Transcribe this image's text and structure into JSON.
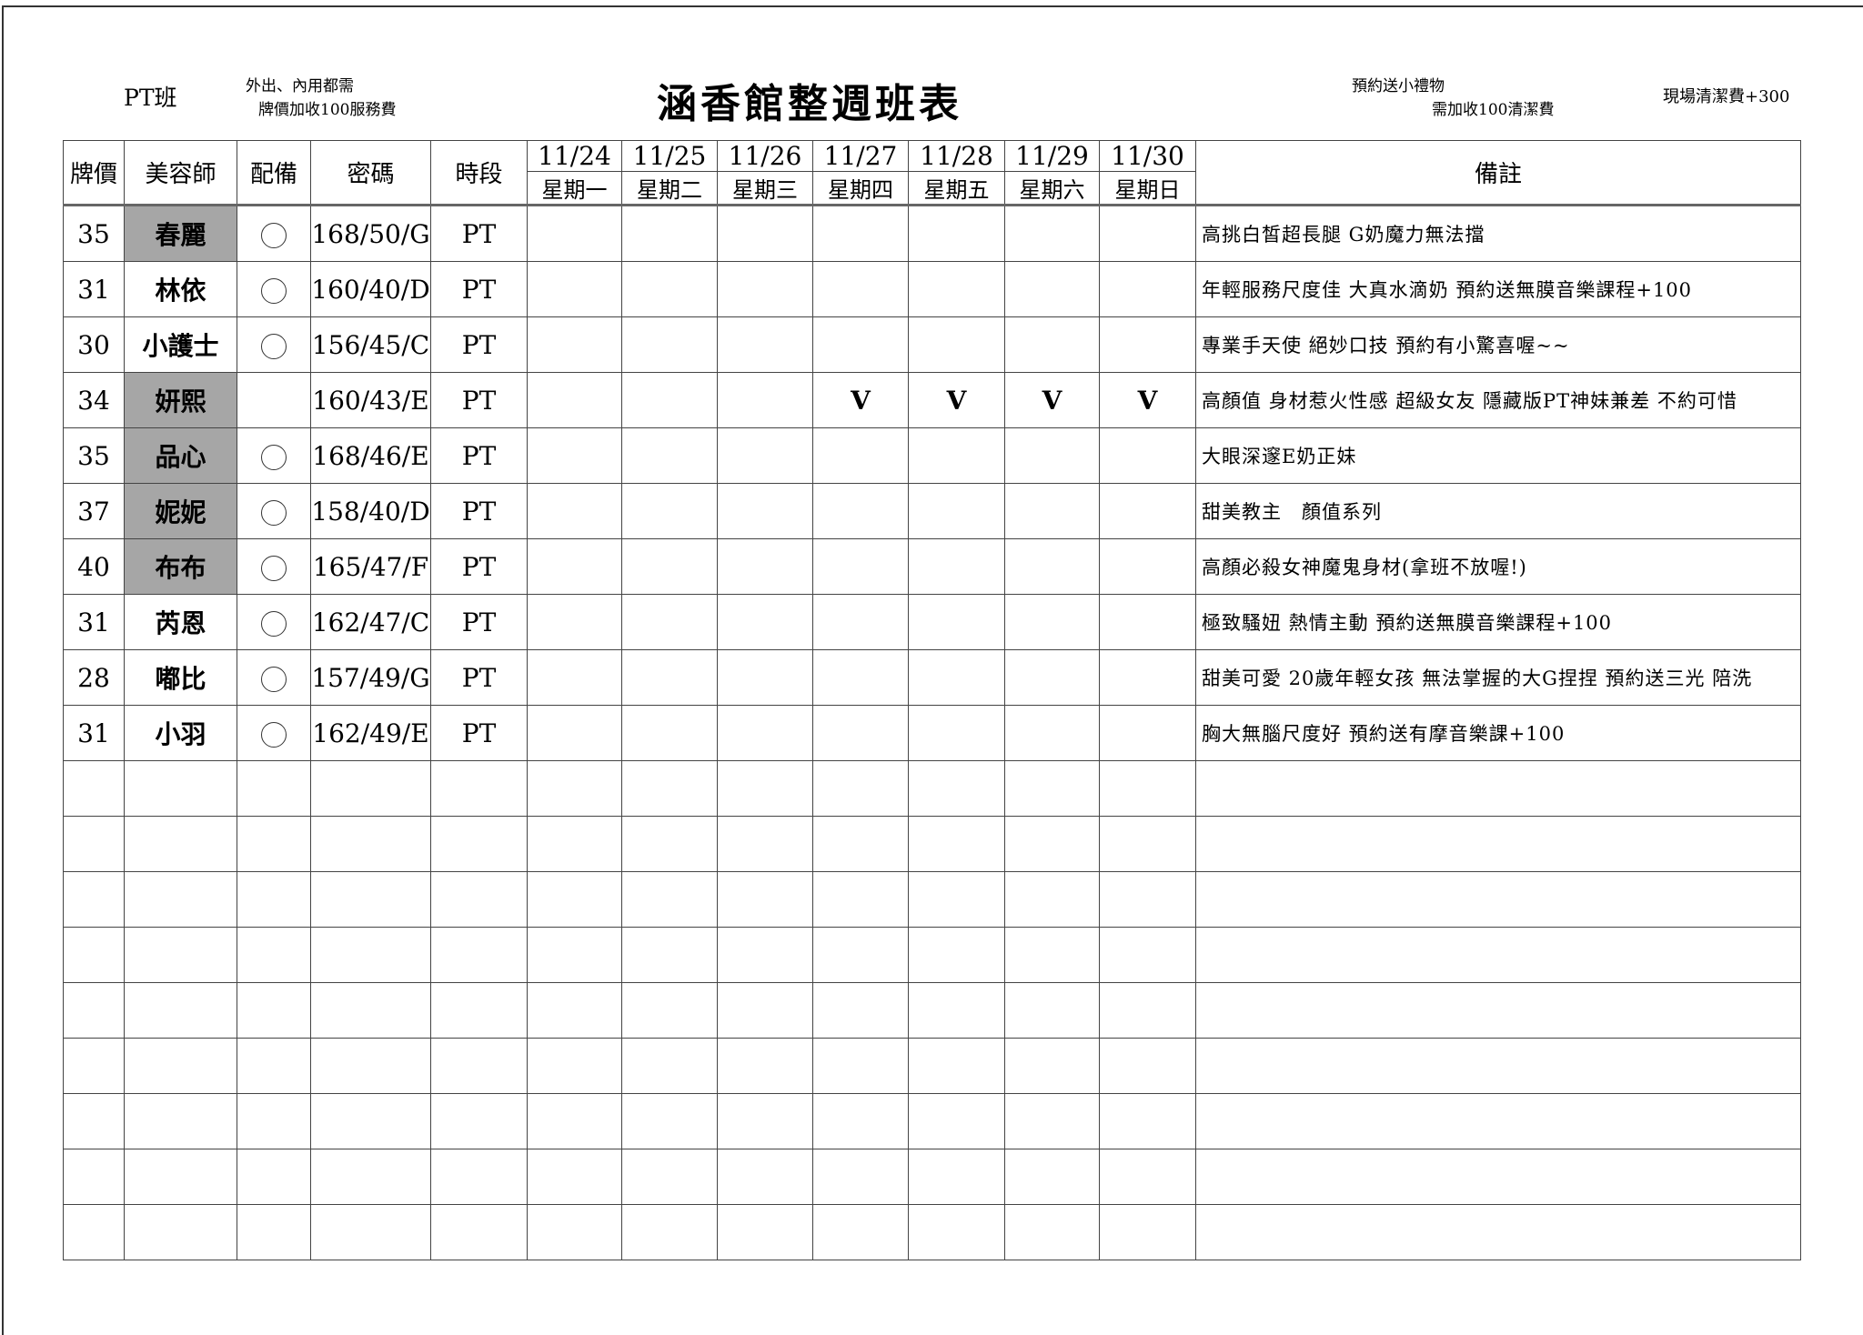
{
  "header": {
    "class_label": "PT班",
    "note_left_line1": "外出、內用都需",
    "note_left_line2": "牌價加收100服務費",
    "title": "涵香館整週班表",
    "note_right_line1": "預約送小禮物",
    "note_right_line2": "需加收100清潔費",
    "note_far_right": "現場清潔費+300"
  },
  "columns": {
    "price": "牌價",
    "stylist": "美容師",
    "equipment": "配備",
    "code": "密碼",
    "shift": "時段",
    "remarks": "備註"
  },
  "days": [
    {
      "date": "11/24",
      "weekday": "星期一"
    },
    {
      "date": "11/25",
      "weekday": "星期二"
    },
    {
      "date": "11/26",
      "weekday": "星期三"
    },
    {
      "date": "11/27",
      "weekday": "星期四"
    },
    {
      "date": "11/28",
      "weekday": "星期五"
    },
    {
      "date": "11/29",
      "weekday": "星期六"
    },
    {
      "date": "11/30",
      "weekday": "星期日"
    }
  ],
  "shade_color": "#a6a6a6",
  "rows": [
    {
      "price": "35",
      "name": "春麗",
      "shaded": true,
      "equip": true,
      "code": "168/50/G",
      "shift": "PT",
      "marks": [
        "",
        "",
        "",
        "",
        "",
        "",
        ""
      ],
      "remark": "高挑白皙超長腿 G奶魔力無法擋"
    },
    {
      "price": "31",
      "name": "林依",
      "shaded": false,
      "equip": true,
      "code": "160/40/D",
      "shift": "PT",
      "marks": [
        "",
        "",
        "",
        "",
        "",
        "",
        ""
      ],
      "remark": "年輕服務尺度佳 大真水滴奶 預約送無膜音樂課程+100"
    },
    {
      "price": "30",
      "name": "小護士",
      "shaded": false,
      "equip": true,
      "code": "156/45/C",
      "shift": "PT",
      "marks": [
        "",
        "",
        "",
        "",
        "",
        "",
        ""
      ],
      "remark": "專業手天使 絕妙口技 預約有小驚喜喔~~"
    },
    {
      "price": "34",
      "name": "妍熙",
      "shaded": true,
      "equip": false,
      "code": "160/43/E",
      "shift": "PT",
      "marks": [
        "",
        "",
        "",
        "V",
        "V",
        "V",
        "V"
      ],
      "remark": "高顏值 身材惹火性感 超級女友 隱藏版PT神妹兼差 不約可惜"
    },
    {
      "price": "35",
      "name": "品心",
      "shaded": true,
      "equip": true,
      "code": "168/46/E",
      "shift": "PT",
      "marks": [
        "",
        "",
        "",
        "",
        "",
        "",
        ""
      ],
      "remark": "大眼深邃E奶正妹"
    },
    {
      "price": "37",
      "name": "妮妮",
      "shaded": true,
      "equip": true,
      "code": "158/40/D",
      "shift": "PT",
      "marks": [
        "",
        "",
        "",
        "",
        "",
        "",
        ""
      ],
      "remark": "甜美教主　顏值系列"
    },
    {
      "price": "40",
      "name": "布布",
      "shaded": true,
      "equip": true,
      "code": "165/47/F",
      "shift": "PT",
      "marks": [
        "",
        "",
        "",
        "",
        "",
        "",
        ""
      ],
      "remark": "高顏必殺女神魔鬼身材(拿班不放喔!)"
    },
    {
      "price": "31",
      "name": "芮恩",
      "shaded": false,
      "equip": true,
      "code": "162/47/C",
      "shift": "PT",
      "marks": [
        "",
        "",
        "",
        "",
        "",
        "",
        ""
      ],
      "remark": "極致騷妞 熱情主動 預約送無膜音樂課程+100"
    },
    {
      "price": "28",
      "name": "嘟比",
      "shaded": false,
      "equip": true,
      "code": "157/49/G",
      "shift": "PT",
      "marks": [
        "",
        "",
        "",
        "",
        "",
        "",
        ""
      ],
      "remark": "甜美可愛 20歲年輕女孩 無法掌握的大G捏捏 預約送三光 陪洗"
    },
    {
      "price": "31",
      "name": "小羽",
      "shaded": false,
      "equip": true,
      "code": "162/49/E",
      "shift": "PT",
      "marks": [
        "",
        "",
        "",
        "",
        "",
        "",
        ""
      ],
      "remark": "胸大無腦尺度好 預約送有摩音樂課+100"
    }
  ]
}
